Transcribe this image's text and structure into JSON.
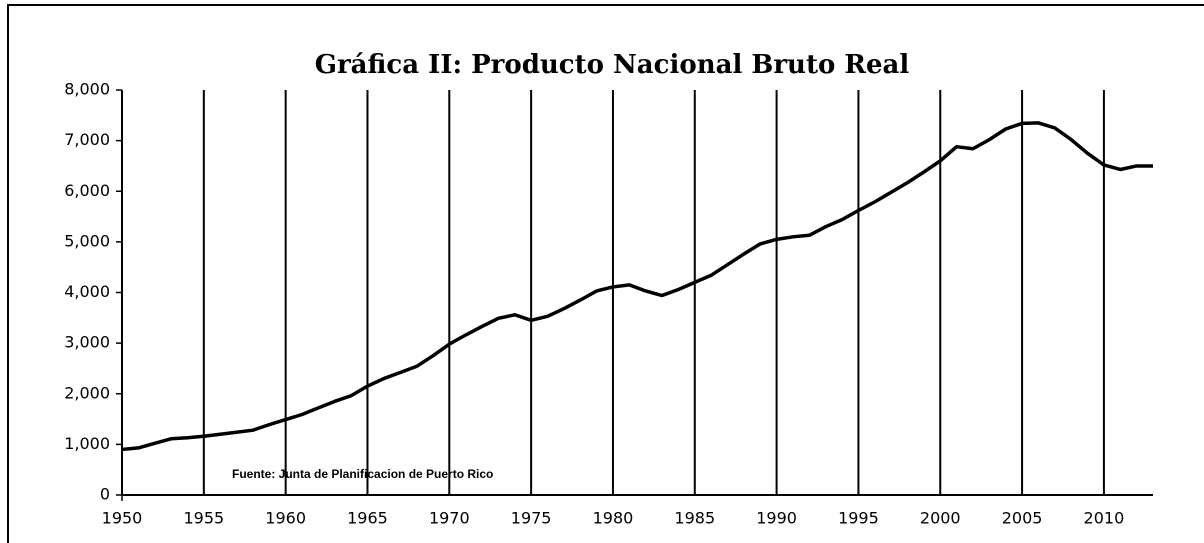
{
  "chart_data": {
    "type": "line",
    "title": "Gráfica II: Producto Nacional Bruto Real",
    "annotation": "Fuente: Junta de Planificacion de Puerto Rico",
    "x": [
      1950,
      1951,
      1952,
      1953,
      1954,
      1955,
      1956,
      1957,
      1958,
      1959,
      1960,
      1961,
      1962,
      1963,
      1964,
      1965,
      1966,
      1967,
      1968,
      1969,
      1970,
      1971,
      1972,
      1973,
      1974,
      1975,
      1976,
      1977,
      1978,
      1979,
      1980,
      1981,
      1982,
      1983,
      1984,
      1985,
      1986,
      1987,
      1988,
      1989,
      1990,
      1991,
      1992,
      1993,
      1994,
      1995,
      1996,
      1997,
      1998,
      1999,
      2000,
      2001,
      2002,
      2003,
      2004,
      2005,
      2006,
      2007,
      2008,
      2009,
      2010,
      2011,
      2012,
      2013
    ],
    "series": [
      {
        "color": "#000000",
        "values": [
          900,
          930,
          1020,
          1110,
          1130,
          1160,
          1200,
          1240,
          1280,
          1390,
          1490,
          1590,
          1720,
          1850,
          1960,
          2150,
          2300,
          2420,
          2540,
          2750,
          2980,
          3160,
          3330,
          3490,
          3560,
          3450,
          3530,
          3680,
          3850,
          4030,
          4110,
          4150,
          4030,
          3940,
          4060,
          4200,
          4340,
          4550,
          4760,
          4960,
          5050,
          5100,
          5130,
          5300,
          5440,
          5620,
          5790,
          5980,
          6170,
          6380,
          6600,
          6880,
          6840,
          7020,
          7230,
          7340,
          7350,
          7250,
          7020,
          6750,
          6520,
          6430,
          6500,
          6500
        ]
      }
    ],
    "xlim": [
      1950,
      2013
    ],
    "xticks": [
      1950,
      1955,
      1960,
      1965,
      1970,
      1975,
      1980,
      1985,
      1990,
      1995,
      2000,
      2005,
      2010
    ],
    "ylim": [
      0,
      8000
    ],
    "yticks": [
      0,
      {
        "value": 1000,
        "label": "1,000"
      },
      {
        "value": 2000,
        "label": "2,000"
      },
      {
        "value": 3000,
        "label": "3,000"
      },
      {
        "value": 4000,
        "label": "4,000"
      },
      {
        "value": 5000,
        "label": "5,000"
      },
      {
        "value": 6000,
        "label": "6,000"
      },
      {
        "value": 7000,
        "label": "7,000"
      },
      {
        "value": 8000,
        "label": "8,000"
      }
    ],
    "grid": "x"
  }
}
